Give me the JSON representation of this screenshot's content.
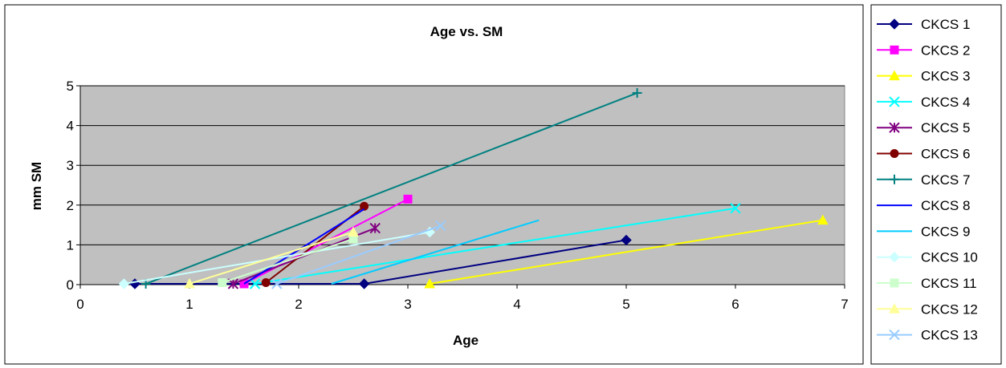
{
  "chart_data": {
    "type": "line",
    "title": "Age vs. SM",
    "xlabel": "Age",
    "ylabel": "mm SM",
    "xlim": [
      0,
      7
    ],
    "ylim": [
      0,
      5
    ],
    "xticks": [
      "0",
      "1",
      "2",
      "3",
      "4",
      "5",
      "6",
      "7"
    ],
    "yticks": [
      "0",
      "1",
      "2",
      "3",
      "4",
      "5"
    ],
    "grid": "horizontal",
    "legend_position": "right",
    "plot_background": "#c0c0c0",
    "series": [
      {
        "name": "CKCS 1",
        "color": "#000080",
        "marker": "diamond",
        "x": [
          0.5,
          2.6,
          5.0
        ],
        "y": [
          0.02,
          0.02,
          1.12
        ]
      },
      {
        "name": "CKCS 2",
        "color": "#ff00ff",
        "marker": "square",
        "x": [
          1.5,
          3.0
        ],
        "y": [
          0.02,
          2.15
        ]
      },
      {
        "name": "CKCS 3",
        "color": "#ffff00",
        "marker": "triangle",
        "x": [
          3.2,
          6.8
        ],
        "y": [
          0.02,
          1.62
        ]
      },
      {
        "name": "CKCS 4",
        "color": "#00ffff",
        "marker": "x",
        "x": [
          1.6,
          6.0
        ],
        "y": [
          0.02,
          1.92
        ]
      },
      {
        "name": "CKCS 5",
        "color": "#800080",
        "marker": "asterisk",
        "x": [
          1.4,
          2.7
        ],
        "y": [
          0.02,
          1.42
        ]
      },
      {
        "name": "CKCS 6",
        "color": "#800000",
        "marker": "circle",
        "x": [
          1.7,
          2.6
        ],
        "y": [
          0.05,
          1.97
        ]
      },
      {
        "name": "CKCS 7",
        "color": "#008080",
        "marker": "plus",
        "x": [
          0.6,
          5.1
        ],
        "y": [
          0.02,
          4.82
        ]
      },
      {
        "name": "CKCS 8",
        "color": "#0000ff",
        "marker": "none",
        "x": [
          1.5,
          2.6
        ],
        "y": [
          0.02,
          1.9
        ]
      },
      {
        "name": "CKCS 9",
        "color": "#00ccff",
        "marker": "none",
        "x": [
          2.3,
          4.2
        ],
        "y": [
          0.02,
          1.62
        ]
      },
      {
        "name": "CKCS 10",
        "color": "#ccffff",
        "marker": "diamond",
        "x": [
          0.4,
          3.2
        ],
        "y": [
          0.02,
          1.32
        ]
      },
      {
        "name": "CKCS 11",
        "color": "#ccffcc",
        "marker": "square",
        "x": [
          1.3,
          2.5
        ],
        "y": [
          0.05,
          1.15
        ]
      },
      {
        "name": "CKCS 12",
        "color": "#ffff99",
        "marker": "triangle",
        "x": [
          1.0,
          2.5
        ],
        "y": [
          0.02,
          1.32
        ]
      },
      {
        "name": "CKCS 13",
        "color": "#99ccff",
        "marker": "x",
        "x": [
          1.8,
          3.3
        ],
        "y": [
          0.02,
          1.48
        ]
      }
    ]
  }
}
